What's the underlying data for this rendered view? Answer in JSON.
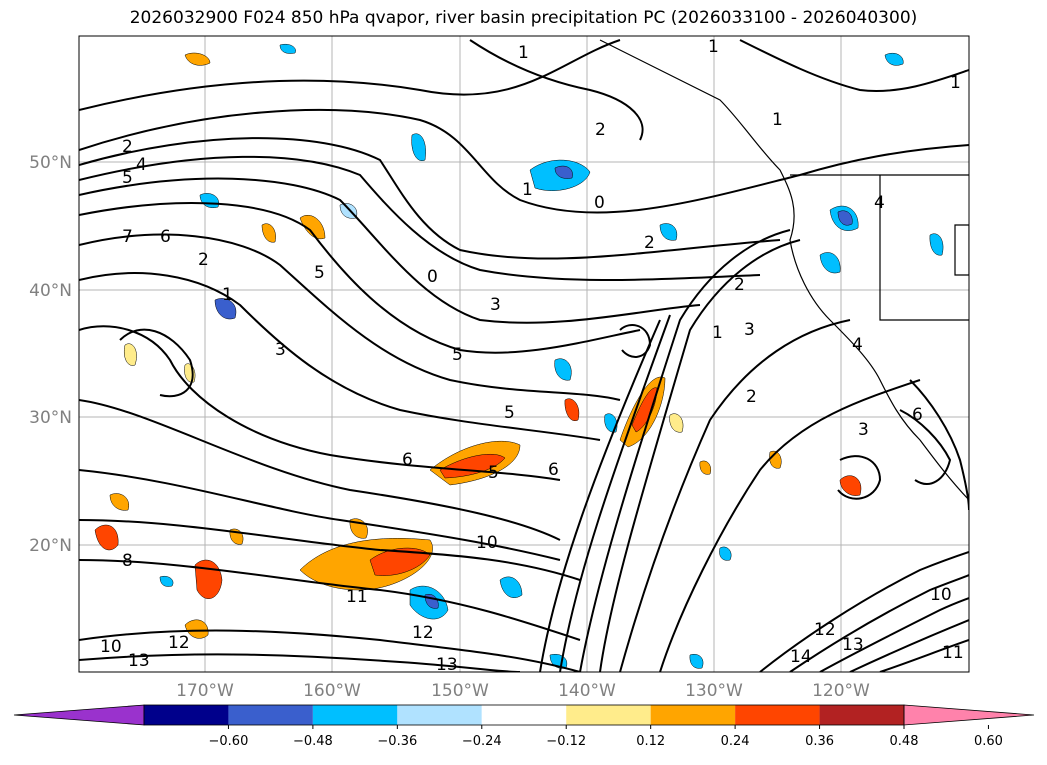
{
  "title": "2026032900 F024 850 hPa qvapor, river basin precipitation PC (2026033100 - 2026040300)",
  "lat_labels": [
    "50°N",
    "40°N",
    "30°N",
    "20°N"
  ],
  "lon_labels": [
    "170°W",
    "160°W",
    "150°W",
    "140°W",
    "130°W",
    "120°W"
  ],
  "colorbar": {
    "colors": [
      "#9a32cd",
      "#00008b",
      "#3a5fcd",
      "#00bfff",
      "#b0e2ff",
      "#ffffff",
      "#ffec8b",
      "#ffa500",
      "#ff4500",
      "#b22222",
      "#ff82ab"
    ],
    "tick_labels": [
      "−0.60",
      "−0.48",
      "−0.36",
      "−0.24",
      "−0.12",
      "0.12",
      "0.24",
      "0.36",
      "0.48",
      "0.60"
    ]
  },
  "contour_labels": [
    "1",
    "1",
    "1",
    "1",
    "2",
    "2",
    "4",
    "5",
    "7",
    "6",
    "2",
    "1",
    "5",
    "3",
    "5",
    "3",
    "0",
    "0",
    "2",
    "6",
    "5",
    "6",
    "5",
    "1",
    "3",
    "2",
    "1",
    "2",
    "4",
    "4",
    "3",
    "6",
    "8",
    "10",
    "11",
    "12",
    "10",
    "13",
    "12",
    "13",
    "14",
    "10",
    "11",
    "13",
    "12"
  ]
}
